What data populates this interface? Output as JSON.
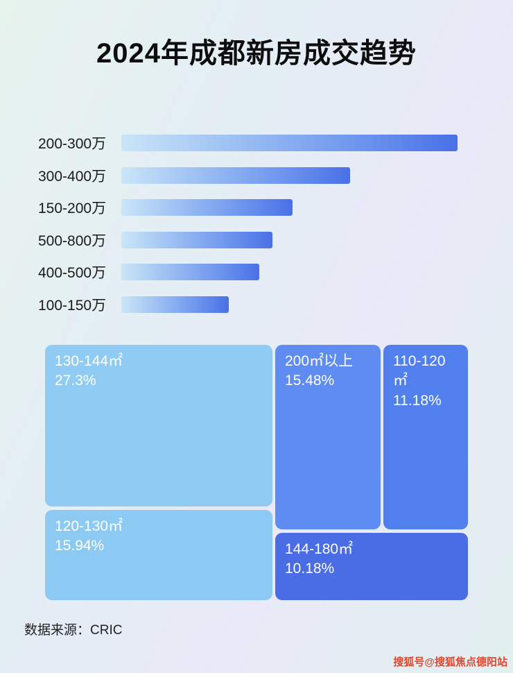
{
  "title": "2024年成都新房成交趋势",
  "colors": {
    "bar_gradient_start": "#c9e6f8",
    "bar_gradient_end": "#4a70e7",
    "watermark": "#e0472e"
  },
  "chart_data": [
    {
      "type": "bar",
      "title": "2024年成都新房成交趋势",
      "orientation": "horizontal",
      "categories": [
        "200-300万",
        "300-400万",
        "150-200万",
        "500-800万",
        "400-500万",
        "100-150万"
      ],
      "values": [
        100,
        68,
        51,
        45,
        41,
        32
      ],
      "value_note": "relative bar length, percent of longest bar (no numeric axis shown)",
      "xlabel": "",
      "ylabel": "",
      "legend": false,
      "grid": false
    },
    {
      "type": "treemap",
      "items": [
        {
          "label": "130-144㎡",
          "value": "27.3%",
          "color": "#8fcbf3"
        },
        {
          "label": "200㎡以上",
          "value": "15.48%",
          "color": "#5e8cf1"
        },
        {
          "label": "110-120㎡",
          "value": "11.18%",
          "color": "#5180ee"
        },
        {
          "label": "120-130㎡",
          "value": "15.94%",
          "color": "#8ccaf3"
        },
        {
          "label": "144-180㎡",
          "value": "10.18%",
          "color": "#4a6ce4"
        }
      ]
    }
  ],
  "footer": {
    "source": "数据来源：CRIC"
  },
  "watermark": "搜狐号@搜狐焦点德阳站"
}
